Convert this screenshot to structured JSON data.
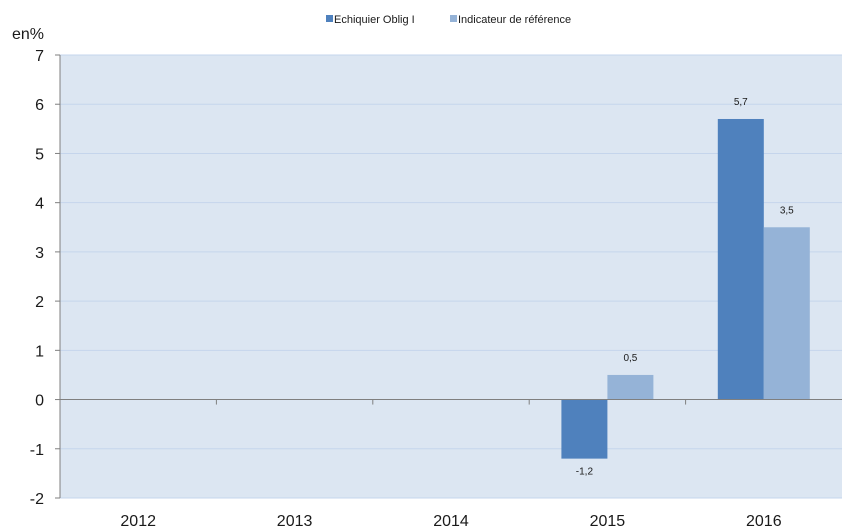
{
  "chart_data": {
    "type": "bar",
    "unit_label": "en%",
    "categories": [
      "2012",
      "2013",
      "2014",
      "2015",
      "2016"
    ],
    "series": [
      {
        "name": "Echiquier Oblig I",
        "color": "#4f81bd",
        "values": [
          null,
          null,
          null,
          -1.2,
          5.7
        ],
        "labels": [
          "",
          "",
          "",
          "-1,2",
          "5,7"
        ]
      },
      {
        "name": "Indicateur de référence",
        "color": "#95b3d7",
        "values": [
          null,
          null,
          null,
          0.5,
          3.5
        ],
        "labels": [
          "",
          "",
          "",
          "0,5",
          "3,5"
        ]
      }
    ],
    "ylim": [
      -2,
      7
    ],
    "yticks": [
      -2,
      -1,
      0,
      1,
      2,
      3,
      4,
      5,
      6,
      7
    ],
    "grid": true,
    "legend_position": "top-center",
    "plot_background": "#dce6f2",
    "gridline_color": "#c5d5ec"
  }
}
